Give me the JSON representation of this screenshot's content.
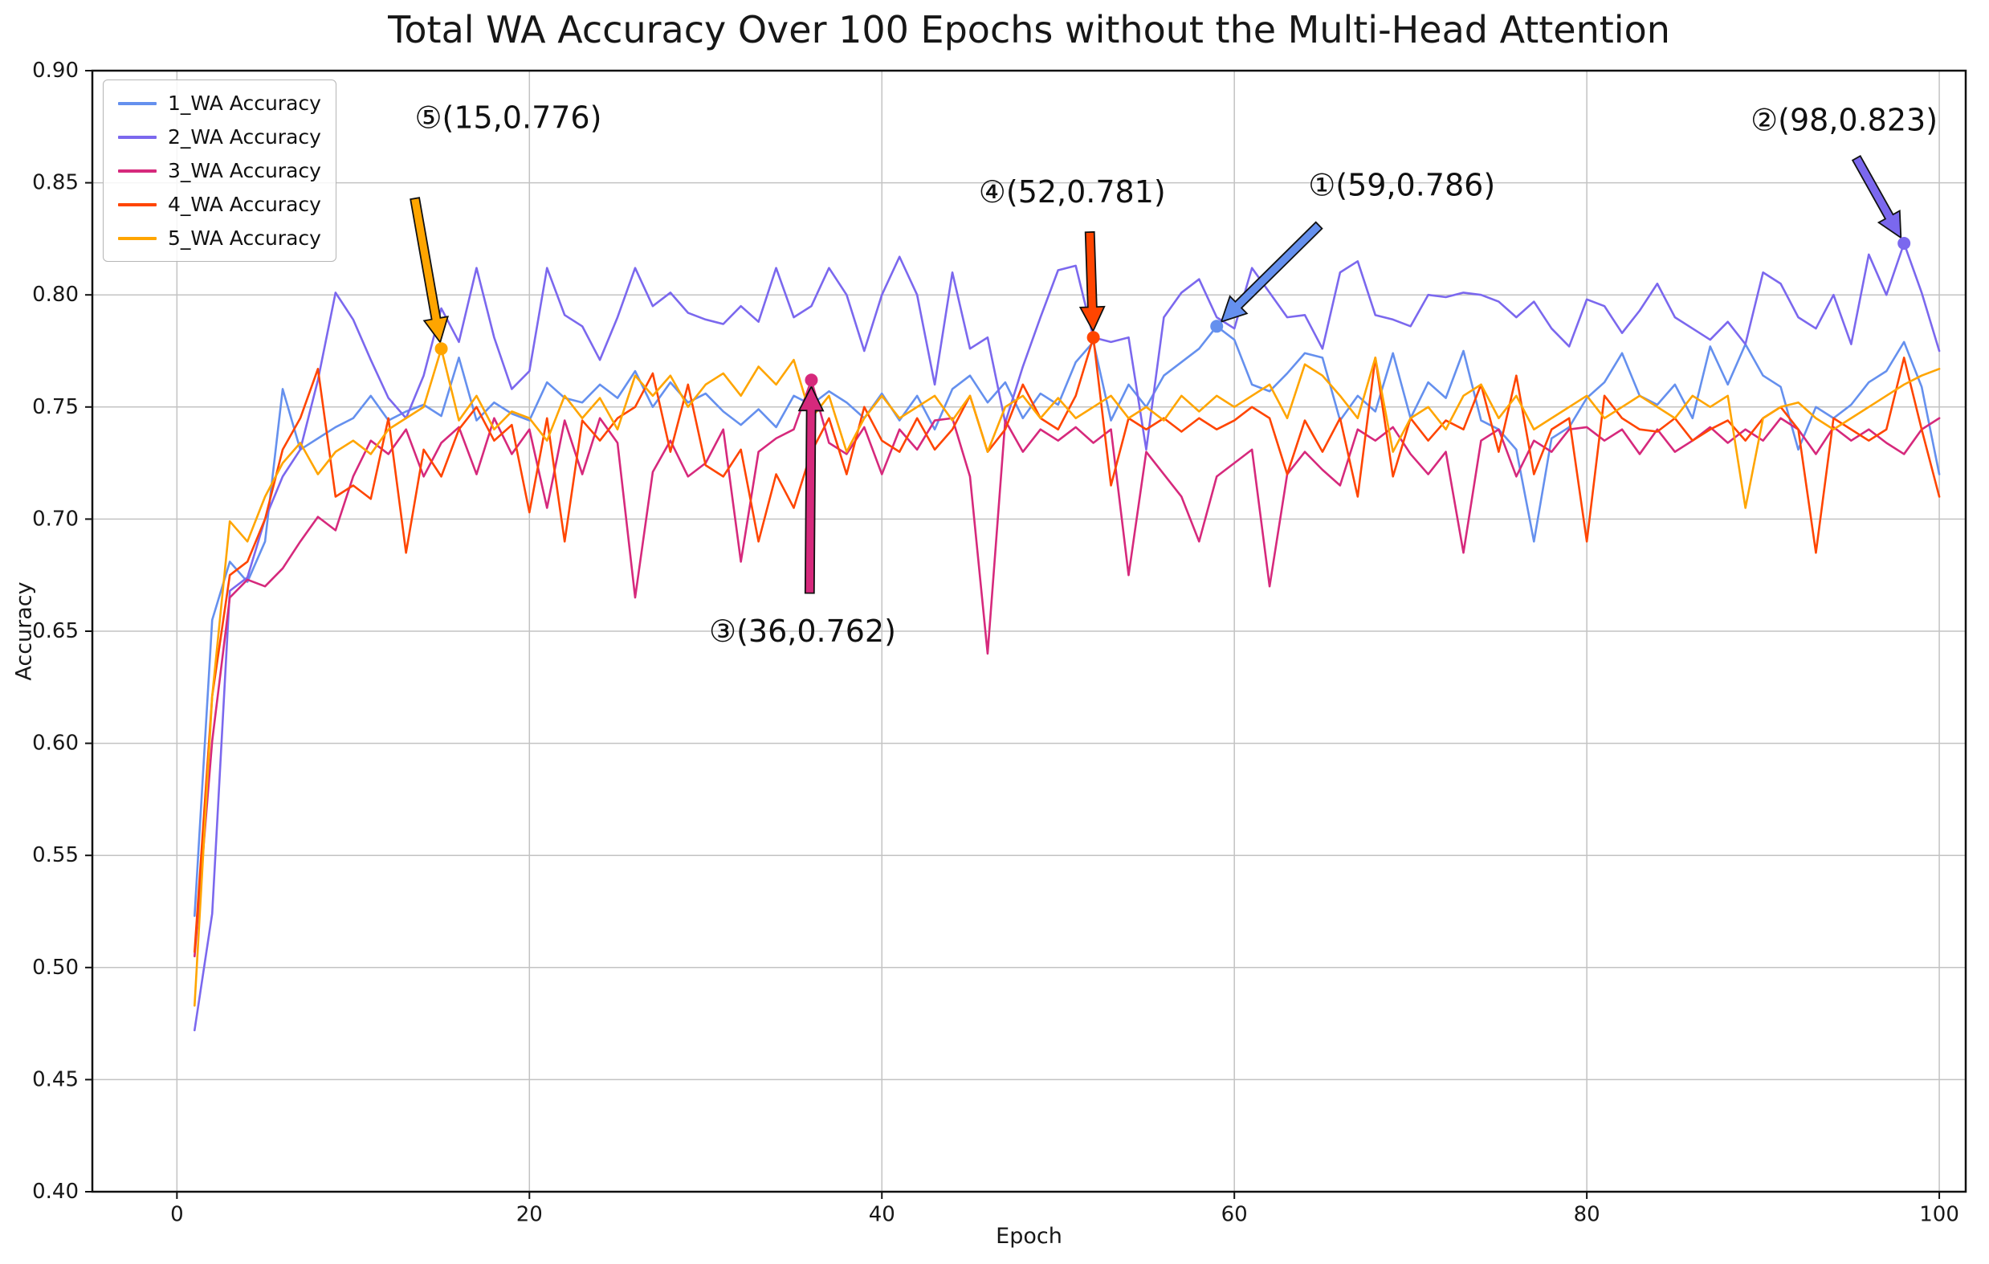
{
  "chart_data": {
    "type": "line",
    "title": "Total WA Accuracy Over 100 Epochs without the Multi-Head Attention",
    "xlabel": "Epoch",
    "ylabel": "Accuracy",
    "grid": true,
    "legend_position": "upper-left",
    "xlim": [
      -4.8,
      101.5
    ],
    "ylim": [
      0.4,
      0.9
    ],
    "x_ticks": [
      0,
      20,
      40,
      60,
      80,
      100
    ],
    "y_ticks": [
      0.4,
      0.45,
      0.5,
      0.55,
      0.6,
      0.65,
      0.7,
      0.75,
      0.8,
      0.85,
      0.9
    ],
    "x": [
      1,
      2,
      3,
      4,
      5,
      6,
      7,
      8,
      9,
      10,
      11,
      12,
      13,
      14,
      15,
      16,
      17,
      18,
      19,
      20,
      21,
      22,
      23,
      24,
      25,
      26,
      27,
      28,
      29,
      30,
      31,
      32,
      33,
      34,
      35,
      36,
      37,
      38,
      39,
      40,
      41,
      42,
      43,
      44,
      45,
      46,
      47,
      48,
      49,
      50,
      51,
      52,
      53,
      54,
      55,
      56,
      57,
      58,
      59,
      60,
      61,
      62,
      63,
      64,
      65,
      66,
      67,
      68,
      69,
      70,
      71,
      72,
      73,
      74,
      75,
      76,
      77,
      78,
      79,
      80,
      81,
      82,
      83,
      84,
      85,
      86,
      87,
      88,
      89,
      90,
      91,
      92,
      93,
      94,
      95,
      96,
      97,
      98,
      99,
      100
    ],
    "series": [
      {
        "name": "1_WA Accuracy",
        "color": "#6590ee",
        "values": [
          0.523,
          0.655,
          0.681,
          0.672,
          0.69,
          0.758,
          0.731,
          0.736,
          0.741,
          0.745,
          0.755,
          0.744,
          0.748,
          0.751,
          0.746,
          0.772,
          0.744,
          0.752,
          0.747,
          0.744,
          0.761,
          0.754,
          0.752,
          0.76,
          0.754,
          0.766,
          0.75,
          0.761,
          0.752,
          0.756,
          0.748,
          0.742,
          0.749,
          0.741,
          0.755,
          0.751,
          0.757,
          0.752,
          0.745,
          0.756,
          0.744,
          0.755,
          0.74,
          0.758,
          0.764,
          0.752,
          0.761,
          0.745,
          0.756,
          0.751,
          0.77,
          0.779,
          0.744,
          0.76,
          0.75,
          0.764,
          0.77,
          0.776,
          0.786,
          0.78,
          0.76,
          0.757,
          0.765,
          0.774,
          0.772,
          0.744,
          0.755,
          0.748,
          0.774,
          0.745,
          0.761,
          0.754,
          0.775,
          0.744,
          0.74,
          0.731,
          0.69,
          0.736,
          0.741,
          0.754,
          0.761,
          0.774,
          0.755,
          0.751,
          0.76,
          0.745,
          0.777,
          0.76,
          0.778,
          0.764,
          0.759,
          0.731,
          0.75,
          0.745,
          0.751,
          0.761,
          0.766,
          0.779,
          0.759,
          0.72
        ]
      },
      {
        "name": "2_WA Accuracy",
        "color": "#7b68ee",
        "values": [
          0.472,
          0.524,
          0.668,
          0.674,
          0.7,
          0.719,
          0.731,
          0.762,
          0.801,
          0.789,
          0.771,
          0.754,
          0.745,
          0.764,
          0.794,
          0.779,
          0.812,
          0.781,
          0.758,
          0.766,
          0.812,
          0.791,
          0.786,
          0.771,
          0.79,
          0.812,
          0.795,
          0.801,
          0.792,
          0.789,
          0.787,
          0.795,
          0.788,
          0.812,
          0.79,
          0.795,
          0.812,
          0.8,
          0.775,
          0.8,
          0.817,
          0.8,
          0.76,
          0.81,
          0.776,
          0.781,
          0.743,
          0.768,
          0.79,
          0.811,
          0.813,
          0.781,
          0.779,
          0.781,
          0.731,
          0.79,
          0.801,
          0.807,
          0.79,
          0.785,
          0.812,
          0.801,
          0.79,
          0.791,
          0.776,
          0.81,
          0.815,
          0.791,
          0.789,
          0.786,
          0.8,
          0.799,
          0.801,
          0.8,
          0.797,
          0.79,
          0.797,
          0.785,
          0.777,
          0.798,
          0.795,
          0.783,
          0.793,
          0.805,
          0.79,
          0.785,
          0.78,
          0.788,
          0.778,
          0.81,
          0.805,
          0.79,
          0.785,
          0.8,
          0.778,
          0.818,
          0.8,
          0.823,
          0.801,
          0.775
        ]
      },
      {
        "name": "3_WA Accuracy",
        "color": "#d6297c",
        "values": [
          0.505,
          0.601,
          0.665,
          0.673,
          0.67,
          0.678,
          0.69,
          0.701,
          0.695,
          0.719,
          0.735,
          0.729,
          0.74,
          0.719,
          0.734,
          0.741,
          0.72,
          0.745,
          0.729,
          0.74,
          0.705,
          0.744,
          0.72,
          0.745,
          0.734,
          0.665,
          0.721,
          0.735,
          0.719,
          0.725,
          0.74,
          0.681,
          0.73,
          0.736,
          0.74,
          0.762,
          0.734,
          0.729,
          0.741,
          0.72,
          0.74,
          0.731,
          0.744,
          0.745,
          0.719,
          0.64,
          0.744,
          0.73,
          0.74,
          0.735,
          0.741,
          0.734,
          0.74,
          0.675,
          0.73,
          0.72,
          0.71,
          0.69,
          0.719,
          0.725,
          0.731,
          0.67,
          0.72,
          0.73,
          0.722,
          0.715,
          0.74,
          0.735,
          0.741,
          0.729,
          0.72,
          0.73,
          0.685,
          0.735,
          0.74,
          0.719,
          0.735,
          0.73,
          0.74,
          0.741,
          0.735,
          0.74,
          0.729,
          0.74,
          0.73,
          0.735,
          0.741,
          0.734,
          0.74,
          0.735,
          0.745,
          0.74,
          0.729,
          0.741,
          0.735,
          0.74,
          0.734,
          0.729,
          0.74,
          0.745
        ]
      },
      {
        "name": "4_WA Accuracy",
        "color": "#ff4500",
        "values": [
          0.507,
          0.621,
          0.675,
          0.681,
          0.7,
          0.731,
          0.745,
          0.767,
          0.71,
          0.715,
          0.709,
          0.745,
          0.685,
          0.731,
          0.719,
          0.74,
          0.75,
          0.735,
          0.742,
          0.703,
          0.745,
          0.69,
          0.744,
          0.735,
          0.745,
          0.75,
          0.765,
          0.73,
          0.76,
          0.724,
          0.719,
          0.731,
          0.69,
          0.72,
          0.705,
          0.73,
          0.745,
          0.72,
          0.75,
          0.735,
          0.73,
          0.745,
          0.731,
          0.74,
          0.755,
          0.73,
          0.74,
          0.76,
          0.745,
          0.74,
          0.755,
          0.781,
          0.715,
          0.745,
          0.74,
          0.745,
          0.739,
          0.745,
          0.74,
          0.744,
          0.75,
          0.745,
          0.72,
          0.744,
          0.73,
          0.745,
          0.71,
          0.772,
          0.719,
          0.745,
          0.735,
          0.744,
          0.74,
          0.76,
          0.73,
          0.764,
          0.72,
          0.74,
          0.745,
          0.69,
          0.755,
          0.745,
          0.74,
          0.739,
          0.745,
          0.735,
          0.74,
          0.744,
          0.735,
          0.745,
          0.75,
          0.74,
          0.685,
          0.745,
          0.74,
          0.735,
          0.74,
          0.772,
          0.74,
          0.71
        ]
      },
      {
        "name": "5_WA Accuracy",
        "color": "#ffa500",
        "values": [
          0.483,
          0.621,
          0.699,
          0.69,
          0.71,
          0.725,
          0.734,
          0.72,
          0.73,
          0.735,
          0.729,
          0.74,
          0.745,
          0.75,
          0.776,
          0.744,
          0.755,
          0.74,
          0.748,
          0.745,
          0.735,
          0.755,
          0.745,
          0.754,
          0.74,
          0.764,
          0.755,
          0.764,
          0.75,
          0.76,
          0.765,
          0.755,
          0.768,
          0.76,
          0.771,
          0.745,
          0.755,
          0.73,
          0.745,
          0.755,
          0.745,
          0.75,
          0.755,
          0.744,
          0.755,
          0.73,
          0.75,
          0.755,
          0.745,
          0.754,
          0.745,
          0.75,
          0.755,
          0.745,
          0.75,
          0.744,
          0.755,
          0.748,
          0.755,
          0.75,
          0.755,
          0.76,
          0.745,
          0.769,
          0.764,
          0.755,
          0.745,
          0.772,
          0.73,
          0.745,
          0.75,
          0.74,
          0.755,
          0.76,
          0.745,
          0.755,
          0.74,
          0.745,
          0.75,
          0.755,
          0.745,
          0.75,
          0.755,
          0.75,
          0.745,
          0.755,
          0.75,
          0.755,
          0.705,
          0.745,
          0.75,
          0.752,
          0.745,
          0.74,
          0.745,
          0.75,
          0.755,
          0.76,
          0.764,
          0.767
        ]
      }
    ],
    "annotations": [
      {
        "id": "1",
        "label": "①(59,0.786)",
        "point": [
          59,
          0.786
        ],
        "color": "#6590ee",
        "text_at": [
          69.5,
          0.849
        ],
        "arrow_tail": [
          64.8,
          0.831
        ]
      },
      {
        "id": "2",
        "label": "②(98,0.823)",
        "point": [
          98,
          0.823
        ],
        "color": "#7b68ee",
        "text_at": [
          94.6,
          0.878
        ],
        "arrow_tail": [
          95.3,
          0.861
        ]
      },
      {
        "id": "3",
        "label": "③(36,0.762)",
        "point": [
          36,
          0.762
        ],
        "color": "#d6297c",
        "text_at": [
          35.5,
          0.65
        ],
        "arrow_tail": [
          35.9,
          0.667
        ]
      },
      {
        "id": "4",
        "label": "④(52,0.781)",
        "point": [
          52,
          0.781
        ],
        "color": "#ff4500",
        "text_at": [
          50.8,
          0.846
        ],
        "arrow_tail": [
          51.8,
          0.828
        ]
      },
      {
        "id": "5",
        "label": "⑤(15,0.776)",
        "point": [
          15,
          0.776
        ],
        "color": "#ffa500",
        "text_at": [
          18.8,
          0.879
        ],
        "arrow_tail": [
          13.5,
          0.843
        ]
      }
    ]
  }
}
